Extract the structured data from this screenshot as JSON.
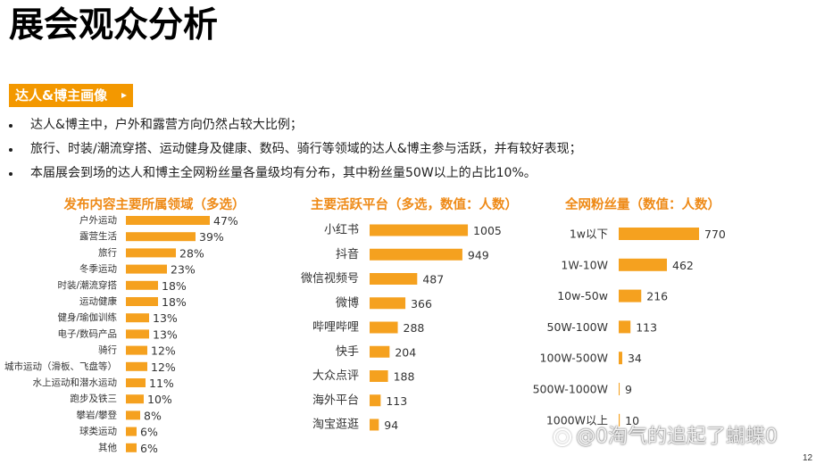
{
  "page": {
    "title": "展会观众分析",
    "page_number": "12"
  },
  "tag": {
    "label": "达人&博主画像",
    "arrow_icon": "triangle-right-icon"
  },
  "bullet_icon": "bullet-dot-icon",
  "bullets": [
    "达人&博主中，户外和露营方向仍然占较大比例；",
    "旅行、时装/潮流穿搭、运动健身及健康、数码、骑行等领域的达人&博主参与活跃，并有较好表现；",
    "本届展会到场的达人和博主全网粉丝量各量级均有分布，其中粉丝量50W以上的占比10%。"
  ],
  "colors": {
    "accent": "#F39800",
    "bar": "#F5A11F",
    "chart_title": "#EE8A17",
    "text": "#1E1E1E",
    "label": "#333333"
  },
  "chart_data": [
    {
      "type": "bar",
      "orientation": "horizontal",
      "title": "发布内容主要所属领域（多选）",
      "categories": [
        "户外运动",
        "露营生活",
        "旅行",
        "冬季运动",
        "时装/潮流穿搭",
        "运动健康",
        "健身/瑜伽训练",
        "电子/数码产品",
        "骑行",
        "城市运动（滑板、飞盘等）",
        "水上运动和潜水运动",
        "跑步及铁三",
        "攀岩/攀登",
        "球类运动",
        "其他"
      ],
      "values": [
        47,
        39,
        28,
        23,
        18,
        18,
        13,
        13,
        12,
        12,
        11,
        10,
        8,
        6,
        6
      ],
      "value_unit": "%",
      "grid": false,
      "legend": "none"
    },
    {
      "type": "bar",
      "orientation": "horizontal",
      "title": "主要活跃平台（多选，数值：人数）",
      "categories": [
        "小红书",
        "抖音",
        "微信视频号",
        "微博",
        "哔哩哔哩",
        "快手",
        "大众点评",
        "海外平台",
        "淘宝逛逛"
      ],
      "values": [
        1005,
        949,
        487,
        366,
        288,
        204,
        188,
        113,
        94
      ],
      "grid": false,
      "legend": "none"
    },
    {
      "type": "bar",
      "orientation": "horizontal",
      "title": "全网粉丝量（数值：人数）",
      "categories": [
        "1w以下",
        "1W-10W",
        "10w-50w",
        "50W-100W",
        "100W-500W",
        "500W-1000W",
        "1000W以上"
      ],
      "values": [
        770,
        462,
        216,
        113,
        34,
        9,
        10
      ],
      "grid": false,
      "legend": "none"
    }
  ],
  "watermark": {
    "icon": "platform-logo-icon",
    "text": "@0淘气的追起了蝴蝶0"
  }
}
